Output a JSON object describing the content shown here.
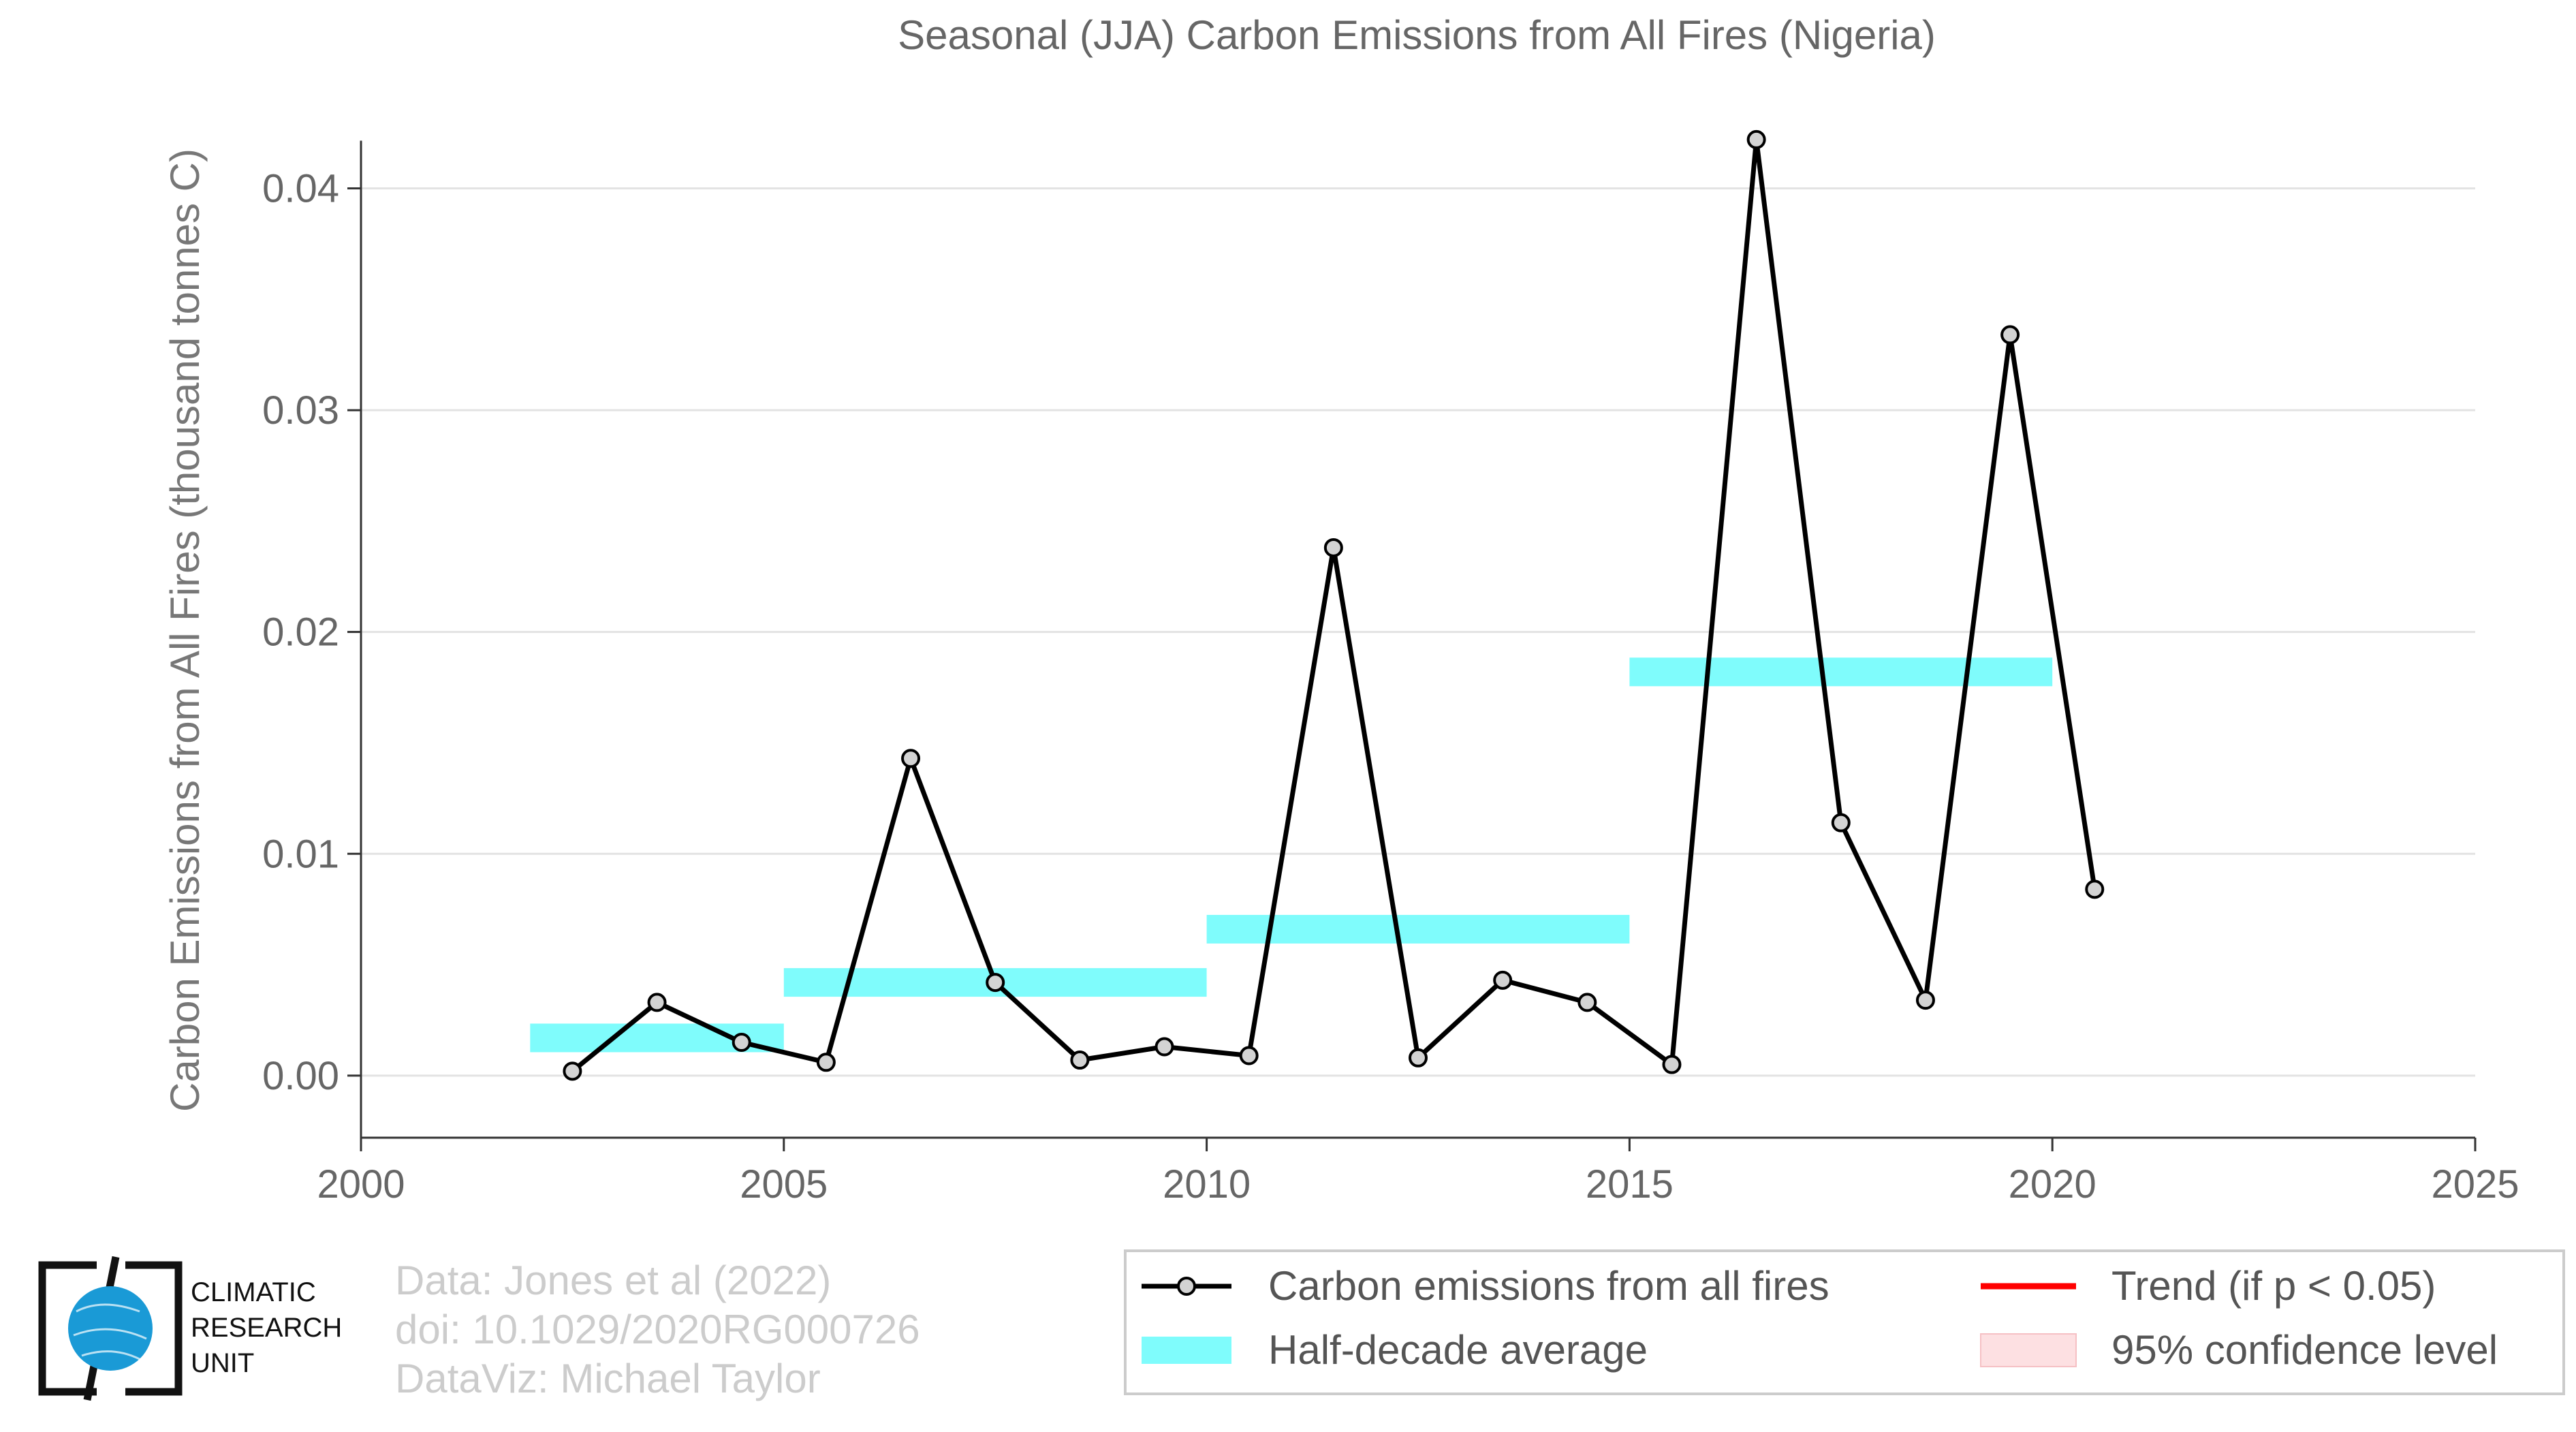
{
  "chart_data": {
    "type": "line",
    "title": "Seasonal (JJA) Carbon Emissions from All Fires (Nigeria)",
    "ylabel": "Carbon Emissions from All Fires (thousand tonnes C)",
    "xlabel": "",
    "xlim": [
      2000,
      2025
    ],
    "ylim": [
      -0.0028,
      0.0445
    ],
    "xticks": [
      "2000",
      "2005",
      "2010",
      "2015",
      "2020",
      "2025"
    ],
    "yticks": [
      "0.00",
      "0.01",
      "0.02",
      "0.03",
      "0.04"
    ],
    "grid": "horizontal",
    "series": [
      {
        "name": "Carbon emissions from all fires",
        "color": "#000000",
        "marker_fill": "#d3d3d3",
        "x": [
          2002.5,
          2003.5,
          2004.5,
          2005.5,
          2006.5,
          2007.5,
          2008.5,
          2009.5,
          2010.5,
          2011.5,
          2012.5,
          2013.5,
          2014.5,
          2015.5,
          2016.5,
          2017.5,
          2018.5,
          2019.5,
          2020.5
        ],
        "y": [
          0.0002,
          0.0033,
          0.0015,
          0.0006,
          0.0143,
          0.0042,
          0.0007,
          0.0013,
          0.0009,
          0.0238,
          0.0008,
          0.0043,
          0.0033,
          0.0005,
          0.0422,
          0.0114,
          0.0034,
          0.0334,
          0.0084
        ]
      }
    ],
    "half_decade_average": {
      "name": "Half-decade average",
      "color": "#7ffcfc",
      "bands": [
        {
          "x0": 2002,
          "x1": 2005,
          "y": 0.0017
        },
        {
          "x0": 2005,
          "x1": 2010,
          "y": 0.0042
        },
        {
          "x0": 2010,
          "x1": 2015,
          "y": 0.0066
        },
        {
          "x0": 2015,
          "x1": 2020,
          "y": 0.0182
        }
      ]
    },
    "legend": {
      "position": "bottom-right",
      "items": [
        {
          "label": "Carbon emissions from all fires",
          "kind": "line-marker",
          "color": "#000000"
        },
        {
          "label": "Trend (if p < 0.05)",
          "kind": "line",
          "color": "#ff0000"
        },
        {
          "label": "Half-decade average",
          "kind": "band",
          "color": "#7ffcfc"
        },
        {
          "label": "95% confidence level",
          "kind": "fill",
          "color": "#fde0e2"
        }
      ]
    }
  },
  "credits": {
    "line1": "Data: Jones et al (2022)",
    "line2": "doi: 10.1029/2020RG000726",
    "line3": "DataViz: Michael Taylor"
  },
  "logo": {
    "line1": "CLIMATIC",
    "line2": "RESEARCH",
    "line3": "UNIT",
    "color": "#1a9ad6"
  }
}
